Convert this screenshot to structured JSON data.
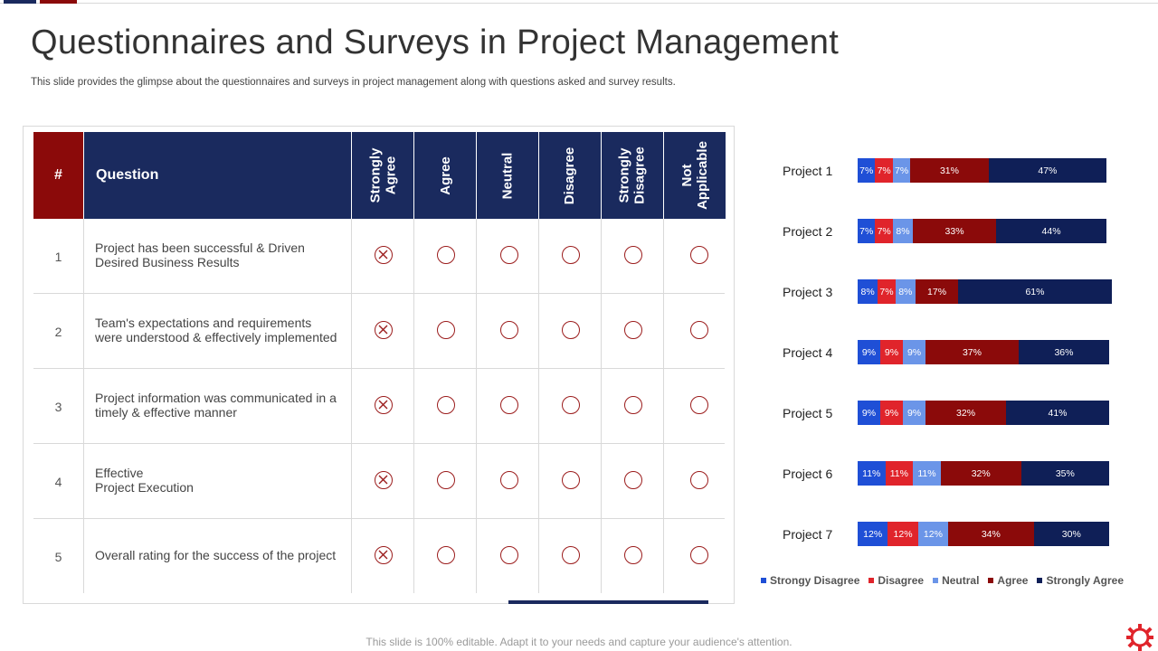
{
  "slide": {
    "title": "Questionnaires and Surveys in Project Management",
    "subtitle": "This slide provides the glimpse about the questionnaires and surveys in project management along with questions asked and survey results.",
    "footer": "This slide is 100% editable. Adapt it to your needs and capture your audience's attention."
  },
  "table": {
    "headers": {
      "num": "#",
      "question": "Question",
      "options": [
        "Strongly\nAgree",
        "Agree",
        "Neutral",
        "Disagree",
        "Strongly\nDisagree",
        "Not\nApplicable"
      ]
    },
    "rows": [
      {
        "num": "1",
        "question": "Project has been successful & Driven\nDesired Business Results",
        "selected": 0
      },
      {
        "num": "2",
        "question": "Team's expectations and  requirements\nwere understood & effectively implemented",
        "selected": 0
      },
      {
        "num": "3",
        "question": "Project information was communicated in a\ntimely & effective manner",
        "selected": 0
      },
      {
        "num": "4",
        "question": "Effective\nProject Execution",
        "selected": 0
      },
      {
        "num": "5",
        "question": "Overall rating for the success of the project",
        "selected": 0
      }
    ]
  },
  "chart_data": {
    "type": "bar",
    "orientation": "horizontal",
    "stacked": true,
    "categories": [
      "Project 1",
      "Project 2",
      "Project 3",
      "Project 4",
      "Project 5",
      "Project 6",
      "Project 7"
    ],
    "series": [
      {
        "name": "Strongy Disagree",
        "color": "#1f4fd6",
        "values": [
          7,
          7,
          8,
          9,
          9,
          11,
          12
        ],
        "labels": [
          "7%",
          "7%",
          "8%",
          "9%",
          "9%",
          "11%",
          "12%"
        ]
      },
      {
        "name": "Disagree",
        "color": "#e0242b",
        "values": [
          7,
          7,
          7,
          9,
          9,
          11,
          12
        ],
        "labels": [
          "7%",
          "7%",
          "7%",
          "9%",
          "9%",
          "11%",
          "12%"
        ]
      },
      {
        "name": "Neutral",
        "color": "#6b95e8",
        "values": [
          7,
          8,
          8,
          9,
          9,
          11,
          12
        ],
        "labels": [
          "7%",
          "8%",
          "8%",
          "9%",
          "9%",
          "11%",
          "12%"
        ]
      },
      {
        "name": "Agree",
        "color": "#8b0a0a",
        "values": [
          31,
          33,
          17,
          37,
          32,
          32,
          34
        ],
        "labels": [
          "31%",
          "33%",
          "17%",
          "37%",
          "32%",
          "32%",
          "34%"
        ]
      },
      {
        "name": "Strongly Agree",
        "color": "#0f1f57",
        "values": [
          47,
          44,
          61,
          36,
          41,
          35,
          30
        ],
        "labels": [
          "47%",
          "44%",
          "61%",
          "36%",
          "41%",
          "35%",
          "30%"
        ]
      }
    ],
    "legend_position": "bottom"
  },
  "colors": {
    "header_blue": "#1a2a5e",
    "header_red": "#8b0a0a",
    "radio_red": "#9b1c1c"
  },
  "icons": {
    "selected_mark": "x-circle-icon",
    "unselected_mark": "empty-circle-icon",
    "brand": "gear-icon"
  }
}
